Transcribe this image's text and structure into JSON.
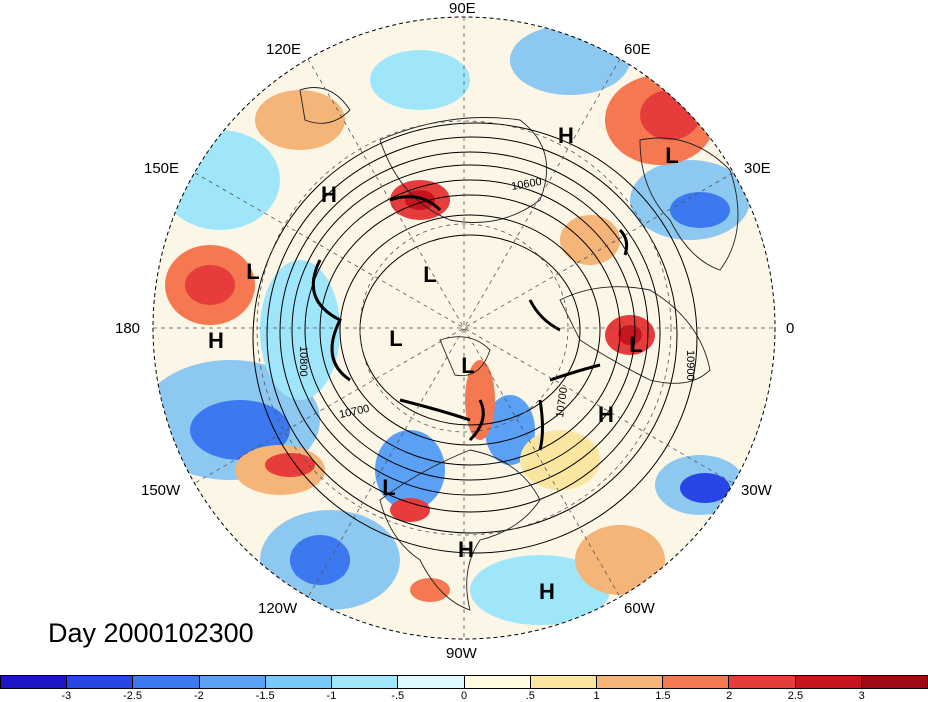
{
  "title": "Day 2000102300",
  "longitude_labels": [
    {
      "text": "90E",
      "pos": "top"
    },
    {
      "text": "120E",
      "pos": "top-left"
    },
    {
      "text": "60E",
      "pos": "top-right"
    },
    {
      "text": "150E",
      "pos": "upper-left"
    },
    {
      "text": "30E",
      "pos": "upper-right"
    },
    {
      "text": "180",
      "pos": "left"
    },
    {
      "text": "0",
      "pos": "right"
    },
    {
      "text": "150W",
      "pos": "lower-left"
    },
    {
      "text": "30W",
      "pos": "lower-right"
    },
    {
      "text": "120W",
      "pos": "bottom-left"
    },
    {
      "text": "60W",
      "pos": "bottom-right"
    },
    {
      "text": "90W",
      "pos": "bottom"
    }
  ],
  "pressure_centers": [
    "H",
    "L",
    "H",
    "L",
    "L",
    "H",
    "L",
    "L",
    "L",
    "H",
    "L",
    "H",
    "H"
  ],
  "contour_labels": [
    "10600",
    "10800",
    "10700",
    "10700",
    "10900"
  ],
  "colorbar": {
    "ticks": [
      "-3",
      "-2.5",
      "-2",
      "-1.5",
      "-1",
      "-.5",
      "0",
      ".5",
      "1",
      "1.5",
      "2",
      "2.5",
      "3"
    ],
    "colors": [
      "#1e14c8",
      "#2846e6",
      "#3c78f0",
      "#5aa0f5",
      "#78c8fa",
      "#a0e6fa",
      "#dcfaff",
      "#fffae0",
      "#fae6a0",
      "#f5b478",
      "#f57850",
      "#e63c3c",
      "#c8141e",
      "#a00a14"
    ]
  }
}
